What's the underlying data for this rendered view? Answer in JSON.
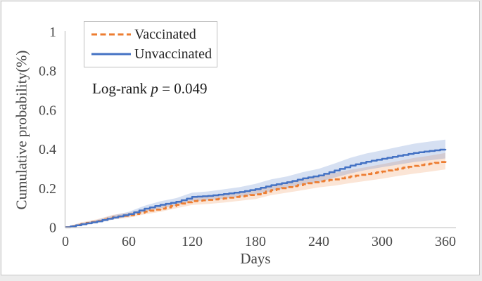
{
  "annotation": {
    "text_before": "Log-rank ",
    "italic": "p",
    "text_after": " = 0.049"
  },
  "chart_data": {
    "type": "line",
    "subtype": "kaplan-meier-cumulative-incidence-with-confidence-bands",
    "title": "",
    "xlabel": "Days",
    "ylabel": "Cumulative probability(%)",
    "xlim": [
      0,
      360
    ],
    "ylim": [
      0,
      1
    ],
    "xticks": [
      0,
      60,
      120,
      180,
      240,
      300,
      360
    ],
    "yticks": [
      0,
      0.2,
      0.4,
      0.6,
      0.8,
      1
    ],
    "grid": false,
    "legend_position": "top-left-inside",
    "axis_color": "#c9c9c9",
    "annotation_text": "Log-rank p = 0.049",
    "x": [
      0,
      15,
      30,
      45,
      60,
      75,
      90,
      105,
      120,
      135,
      150,
      165,
      180,
      195,
      210,
      225,
      240,
      255,
      270,
      285,
      300,
      315,
      330,
      345,
      360
    ],
    "series": [
      {
        "name": "Vaccinated",
        "color": "#ED7D31",
        "style": "dashed",
        "band_color": "rgba(237,125,49,0.20)",
        "values": [
          0,
          0.017,
          0.032,
          0.052,
          0.062,
          0.08,
          0.095,
          0.115,
          0.134,
          0.14,
          0.148,
          0.158,
          0.168,
          0.19,
          0.205,
          0.22,
          0.235,
          0.245,
          0.26,
          0.272,
          0.285,
          0.3,
          0.314,
          0.325,
          0.338
        ],
        "upper": [
          0,
          0.025,
          0.041,
          0.064,
          0.075,
          0.094,
          0.111,
          0.133,
          0.154,
          0.161,
          0.17,
          0.181,
          0.192,
          0.216,
          0.233,
          0.25,
          0.266,
          0.277,
          0.294,
          0.307,
          0.322,
          0.338,
          0.354,
          0.366,
          0.38
        ],
        "lower": [
          0,
          0.009,
          0.023,
          0.04,
          0.049,
          0.066,
          0.079,
          0.097,
          0.114,
          0.119,
          0.126,
          0.135,
          0.144,
          0.164,
          0.177,
          0.19,
          0.204,
          0.213,
          0.226,
          0.237,
          0.248,
          0.262,
          0.274,
          0.284,
          0.296
        ]
      },
      {
        "name": "Unvaccinated",
        "color": "#4472C4",
        "style": "solid",
        "band_color": "rgba(68,114,196,0.22)",
        "values": [
          0,
          0.015,
          0.03,
          0.05,
          0.067,
          0.095,
          0.115,
          0.13,
          0.155,
          0.16,
          0.17,
          0.18,
          0.195,
          0.215,
          0.23,
          0.25,
          0.265,
          0.29,
          0.315,
          0.335,
          0.35,
          0.365,
          0.38,
          0.39,
          0.4
        ],
        "upper": [
          0,
          0.022,
          0.038,
          0.061,
          0.079,
          0.11,
          0.133,
          0.149,
          0.177,
          0.183,
          0.194,
          0.205,
          0.222,
          0.245,
          0.26,
          0.282,
          0.299,
          0.326,
          0.355,
          0.377,
          0.393,
          0.41,
          0.427,
          0.438,
          0.448
        ],
        "lower": [
          0,
          0.008,
          0.022,
          0.039,
          0.055,
          0.08,
          0.097,
          0.111,
          0.133,
          0.137,
          0.146,
          0.155,
          0.168,
          0.185,
          0.2,
          0.218,
          0.231,
          0.254,
          0.275,
          0.293,
          0.307,
          0.32,
          0.333,
          0.342,
          0.352
        ]
      }
    ]
  }
}
